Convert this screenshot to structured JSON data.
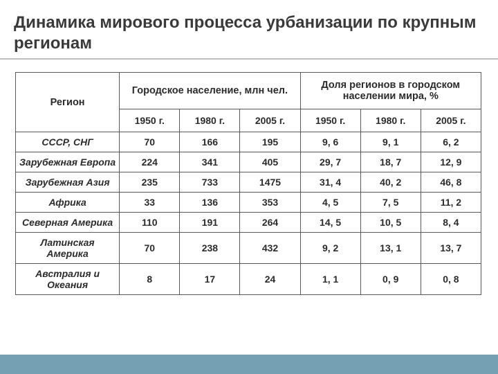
{
  "title": "Динамика мирового процесса урбанизации по крупным регионам",
  "headers": {
    "region": "Регион",
    "group_pop": "Городское население, млн чел.",
    "group_share": "Доля регионов в городском населении мира, %",
    "y1": "1950 г.",
    "y2": "1980 г.",
    "y3": "2005 г."
  },
  "rows": [
    {
      "region": "СССР, СНГ",
      "p1": "70",
      "p2": "166",
      "p3": "195",
      "s1": "9, 6",
      "s2": "9, 1",
      "s3": "6, 2"
    },
    {
      "region": "Зарубежная Европа",
      "p1": "224",
      "p2": "341",
      "p3": "405",
      "s1": "29, 7",
      "s2": "18, 7",
      "s3": "12, 9"
    },
    {
      "region": "Зарубежная Азия",
      "p1": "235",
      "p2": "733",
      "p3": "1475",
      "s1": "31, 4",
      "s2": "40, 2",
      "s3": "46, 8"
    },
    {
      "region": "Африка",
      "p1": "33",
      "p2": "136",
      "p3": "353",
      "s1": "4, 5",
      "s2": "7, 5",
      "s3": "11, 2"
    },
    {
      "region": "Северная Америка",
      "p1": "110",
      "p2": "191",
      "p3": "264",
      "s1": "14, 5",
      "s2": "10, 5",
      "s3": "8, 4"
    },
    {
      "region": "Латинская Америка",
      "p1": "70",
      "p2": "238",
      "p3": "432",
      "s1": "9, 2",
      "s2": "13, 1",
      "s3": "13, 7"
    },
    {
      "region": "Австралия и Океания",
      "p1": "8",
      "p2": "17",
      "p3": "24",
      "s1": "1, 1",
      "s2": "0, 9",
      "s3": "0, 8"
    }
  ],
  "colors": {
    "footer_bar": "#75a0b3",
    "title_underline": "#bfbfbf",
    "table_border": "#595959"
  }
}
